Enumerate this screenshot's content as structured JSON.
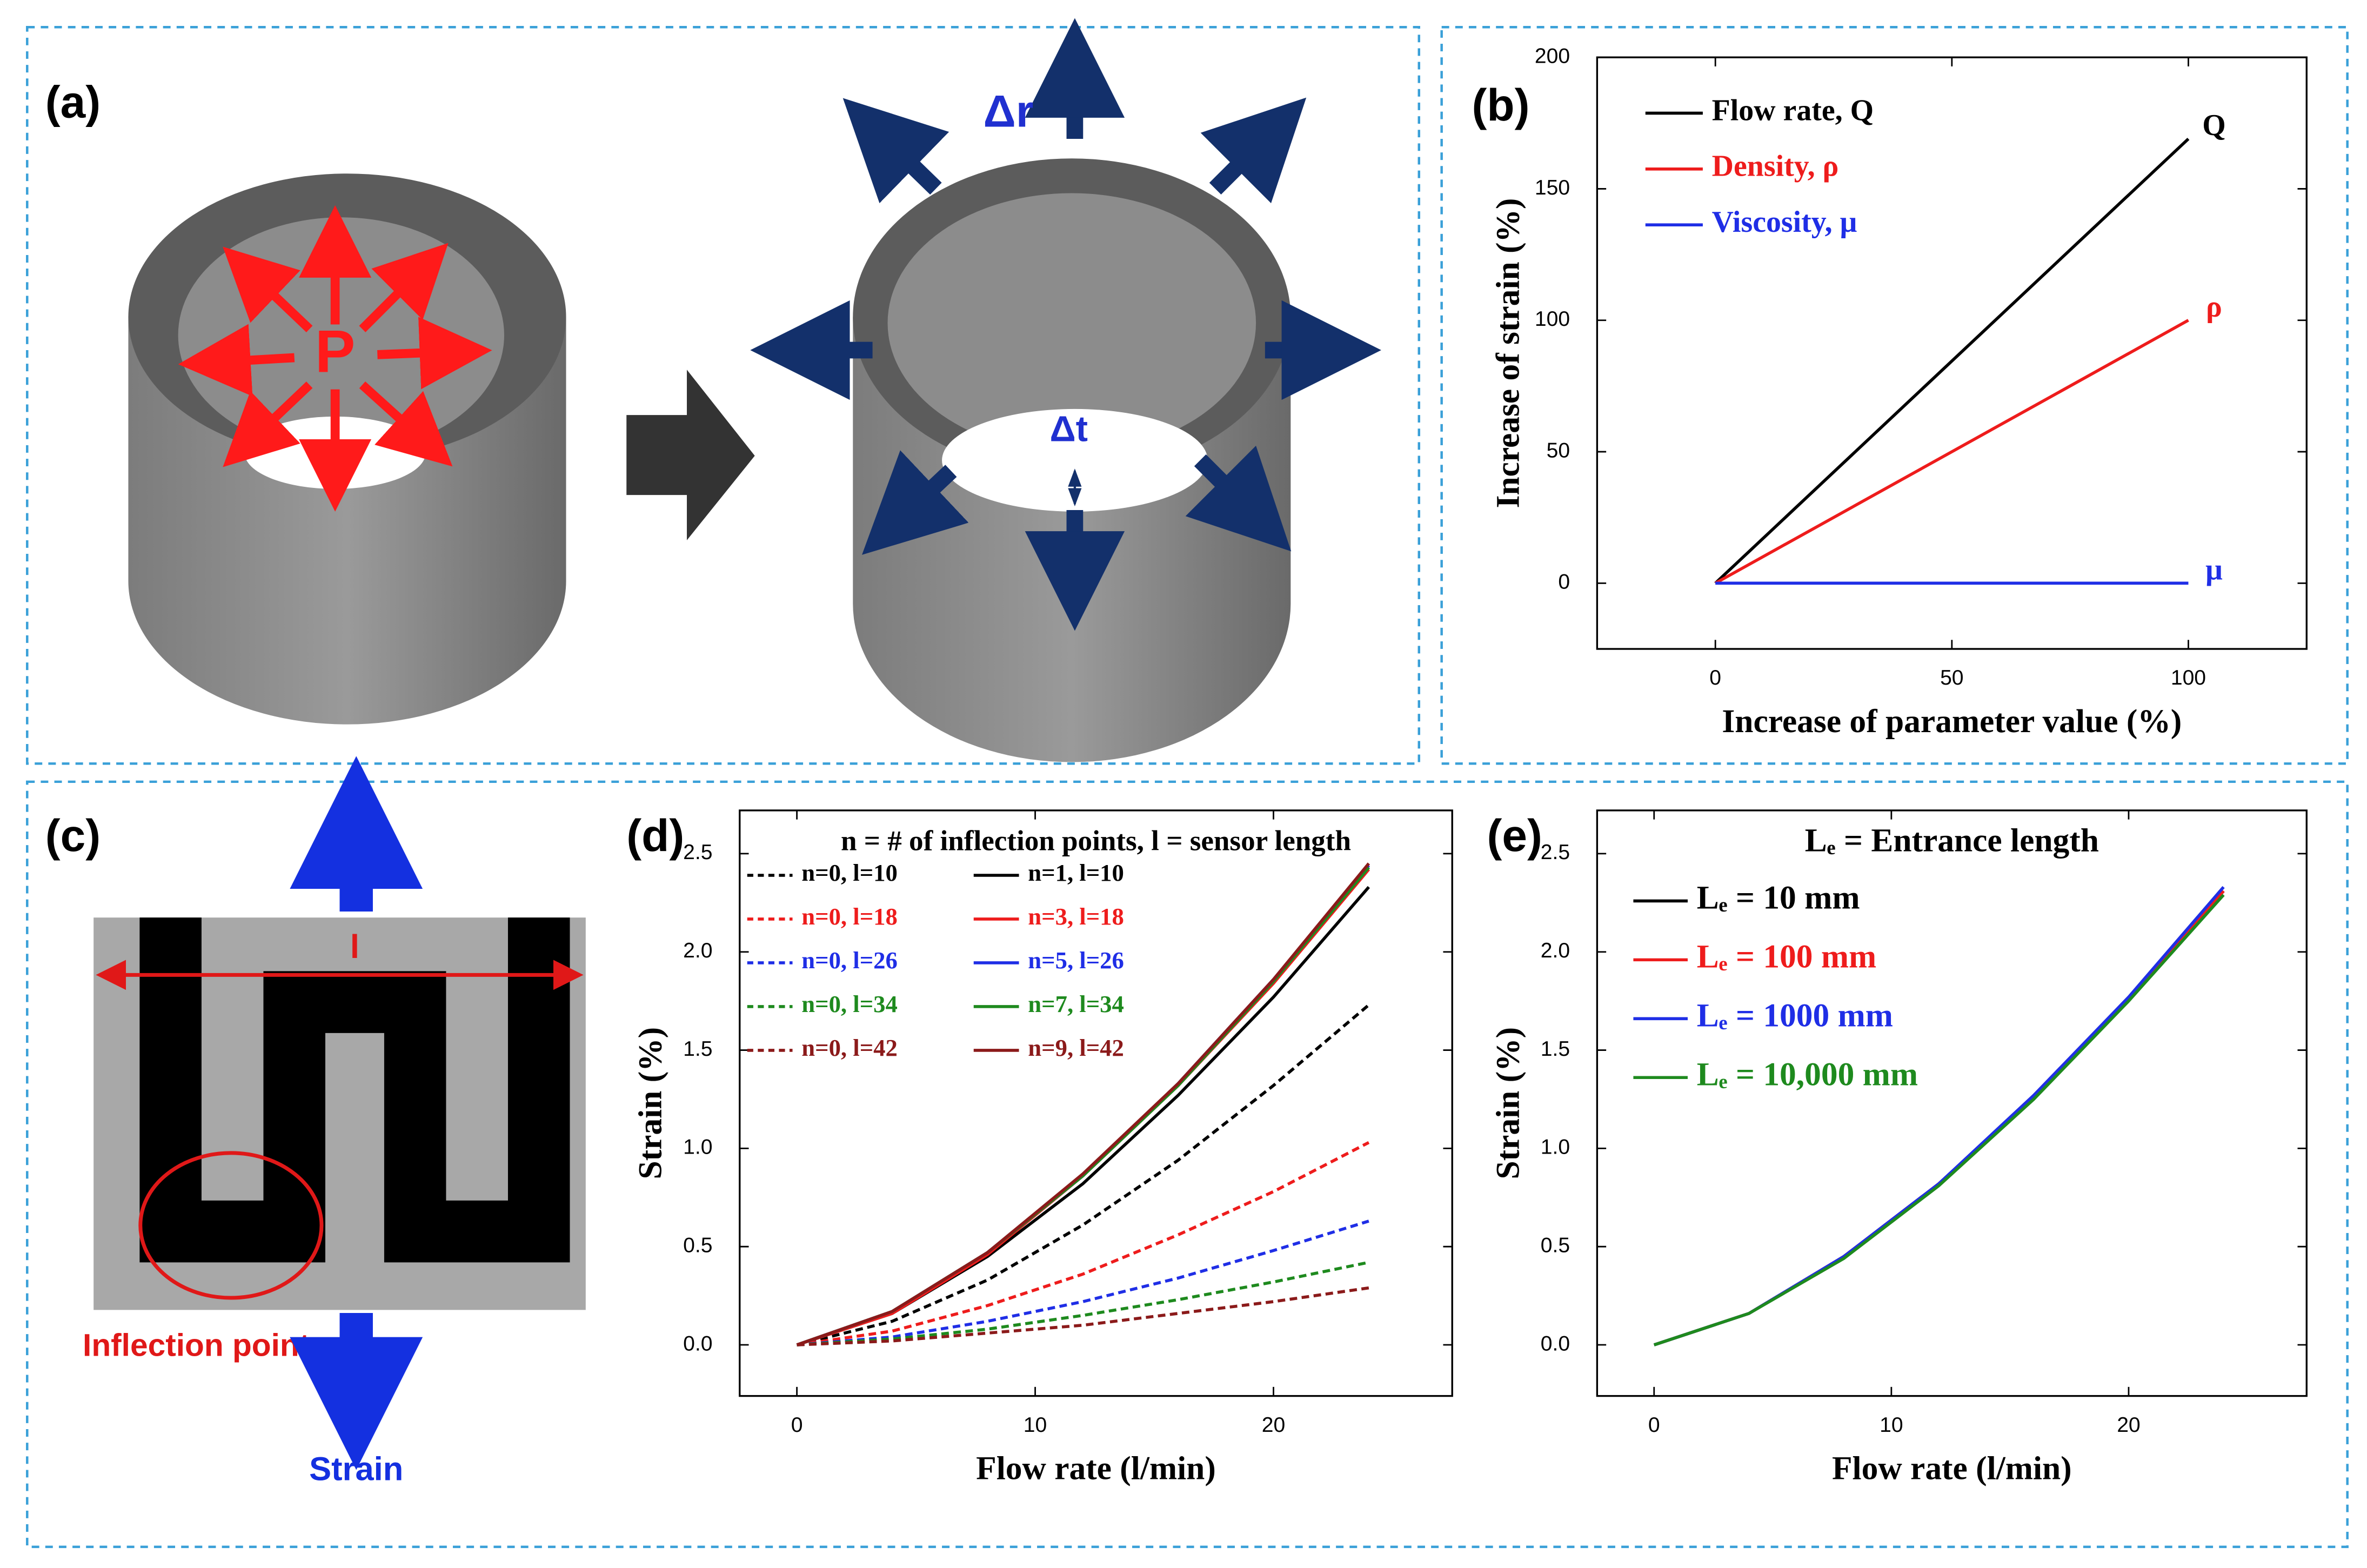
{
  "panel_a": {
    "label": "(a)",
    "pressure": "P",
    "delta_r": "Δr",
    "delta_t": "Δt"
  },
  "panel_c": {
    "label": "(c)",
    "length": "l",
    "inflection": "Inflection point",
    "strain": "Strain"
  },
  "chart_data": [
    {
      "type": "line",
      "label": "(b)",
      "xlabel": "Increase of parameter value (%)",
      "ylabel": "Increase of strain (%)",
      "xlim": [
        -25,
        125
      ],
      "ylim": [
        -25,
        200
      ],
      "xticks": [
        0,
        50,
        100
      ],
      "yticks": [
        0,
        50,
        100,
        150,
        200
      ],
      "legend": "upper left",
      "x": [
        0,
        100
      ],
      "series": [
        {
          "name": "Flow rate, Q",
          "color": "#000000",
          "values": [
            0,
            169
          ],
          "end_label": "Q"
        },
        {
          "name": "Density, ρ",
          "color": "#ee1c1c",
          "values": [
            0,
            100
          ],
          "end_label": "ρ"
        },
        {
          "name": "Viscosity, μ",
          "color": "#1f2ee6",
          "values": [
            0,
            0
          ],
          "end_label": "μ"
        }
      ]
    },
    {
      "type": "line",
      "label": "(d)",
      "title": "n = # of inflection points, l = sensor length",
      "xlabel": "Flow rate (l/min)",
      "ylabel": "Strain (%)",
      "xlim": [
        -2.4,
        27.5
      ],
      "ylim": [
        -0.26,
        2.72
      ],
      "xticks": [
        0,
        10,
        20
      ],
      "yticks": [
        {
          "value": 0,
          "label": "0.0"
        },
        0.5,
        {
          "value": 1,
          "label": "1.0"
        },
        1.5,
        {
          "value": 2,
          "label": "2.0"
        },
        2.5
      ],
      "legend": "upper left",
      "x": [
        0,
        4,
        8,
        12,
        16,
        20,
        24
      ],
      "series": [
        {
          "name": "n=0, l=10",
          "color": "#000000",
          "dash": true,
          "values": [
            0,
            0.12,
            0.33,
            0.61,
            0.94,
            1.32,
            1.73
          ]
        },
        {
          "name": "n=1, l=10",
          "color": "#000000",
          "dash": false,
          "values": [
            0,
            0.16,
            0.45,
            0.82,
            1.27,
            1.77,
            2.33
          ]
        },
        {
          "name": "n=0, l=18",
          "color": "#ee1c1c",
          "dash": true,
          "values": [
            0,
            0.07,
            0.2,
            0.36,
            0.56,
            0.78,
            1.03
          ]
        },
        {
          "name": "n=3, l=18",
          "color": "#ee1c1c",
          "dash": false,
          "values": [
            0,
            0.16,
            0.46,
            0.86,
            1.32,
            1.84,
            2.42
          ]
        },
        {
          "name": "n=0, l=26",
          "color": "#1f2ee6",
          "dash": true,
          "values": [
            0,
            0.04,
            0.12,
            0.22,
            0.34,
            0.48,
            0.63
          ]
        },
        {
          "name": "n=5, l=26",
          "color": "#1f2ee6",
          "dash": false,
          "values": [
            0,
            0.17,
            0.47,
            0.86,
            1.33,
            1.86,
            2.44
          ]
        },
        {
          "name": "n=0, l=34",
          "color": "#1e8a1e",
          "dash": true,
          "values": [
            0,
            0.03,
            0.08,
            0.15,
            0.23,
            0.32,
            0.42
          ]
        },
        {
          "name": "n=7, l=34",
          "color": "#1e8a1e",
          "dash": false,
          "values": [
            0,
            0.17,
            0.47,
            0.86,
            1.32,
            1.85,
            2.43
          ]
        },
        {
          "name": "n=0, l=42",
          "color": "#8b1a1a",
          "dash": true,
          "values": [
            0,
            0.02,
            0.06,
            0.1,
            0.16,
            0.22,
            0.29
          ]
        },
        {
          "name": "n=9, l=42",
          "color": "#8b1a1a",
          "dash": false,
          "values": [
            0,
            0.17,
            0.47,
            0.87,
            1.33,
            1.86,
            2.45
          ]
        }
      ]
    },
    {
      "type": "line",
      "label": "(e)",
      "title": "Lₑ = Entrance length",
      "xlabel": "Flow rate (l/min)",
      "ylabel": "Strain (%)",
      "xlim": [
        -2.4,
        27.5
      ],
      "ylim": [
        -0.26,
        2.72
      ],
      "xticks": [
        0,
        10,
        20
      ],
      "yticks": [
        {
          "value": 0,
          "label": "0.0"
        },
        0.5,
        {
          "value": 1,
          "label": "1.0"
        },
        1.5,
        {
          "value": 2,
          "label": "2.0"
        },
        2.5
      ],
      "legend": "upper left",
      "x": [
        0,
        4,
        8,
        12,
        16,
        20,
        24
      ],
      "series": [
        {
          "name": "Lₑ = 10 mm",
          "color": "#000000",
          "values": [
            0,
            0.16,
            0.45,
            0.82,
            1.26,
            1.76,
            2.31
          ]
        },
        {
          "name": "Lₑ = 100 mm",
          "color": "#ee1c1c",
          "values": [
            0,
            0.16,
            0.45,
            0.82,
            1.26,
            1.76,
            2.31
          ]
        },
        {
          "name": "Lₑ = 1000 mm",
          "color": "#1f2ee6",
          "values": [
            0,
            0.16,
            0.45,
            0.82,
            1.27,
            1.77,
            2.33
          ]
        },
        {
          "name": "Lₑ = 10,000 mm",
          "color": "#1e8a1e",
          "values": [
            0,
            0.16,
            0.44,
            0.81,
            1.25,
            1.75,
            2.29
          ]
        }
      ]
    }
  ]
}
